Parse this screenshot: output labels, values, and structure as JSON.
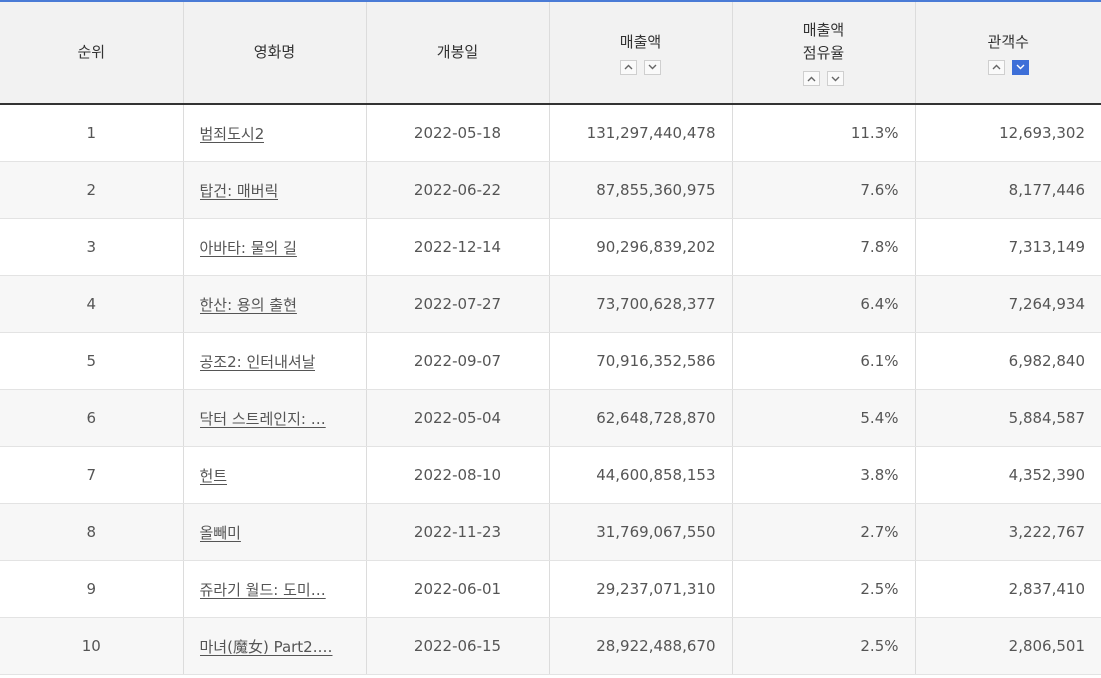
{
  "headers": {
    "rank": "순위",
    "title": "영화명",
    "release": "개봉일",
    "sales": "매출액",
    "share_line1": "매출액",
    "share_line2": "점유율",
    "audience": "관객수"
  },
  "sort": {
    "sales": {
      "up": "chevron-up-icon",
      "down": "chevron-down-icon",
      "active": "none"
    },
    "share": {
      "up": "chevron-up-icon",
      "down": "chevron-down-icon",
      "active": "none"
    },
    "audience": {
      "up": "chevron-up-icon",
      "down": "chevron-down-icon",
      "active": "down"
    }
  },
  "colors": {
    "accent": "#3d6fd8",
    "header_bg": "#f2f2f2",
    "stripe": "#f7f7f7"
  },
  "rows": [
    {
      "rank": "1",
      "title": "범죄도시2",
      "release": "2022-05-18",
      "sales": "131,297,440,478",
      "share": "11.3%",
      "audience": "12,693,302"
    },
    {
      "rank": "2",
      "title": "탑건: 매버릭",
      "release": "2022-06-22",
      "sales": "87,855,360,975",
      "share": "7.6%",
      "audience": "8,177,446"
    },
    {
      "rank": "3",
      "title": "아바타: 물의 길",
      "release": "2022-12-14",
      "sales": "90,296,839,202",
      "share": "7.8%",
      "audience": "7,313,149"
    },
    {
      "rank": "4",
      "title": "한산: 용의 출현",
      "release": "2022-07-27",
      "sales": "73,700,628,377",
      "share": "6.4%",
      "audience": "7,264,934"
    },
    {
      "rank": "5",
      "title": "공조2: 인터내셔날",
      "release": "2022-09-07",
      "sales": "70,916,352,586",
      "share": "6.1%",
      "audience": "6,982,840"
    },
    {
      "rank": "6",
      "title": "닥터 스트레인지: …",
      "release": "2022-05-04",
      "sales": "62,648,728,870",
      "share": "5.4%",
      "audience": "5,884,587"
    },
    {
      "rank": "7",
      "title": "헌트",
      "release": "2022-08-10",
      "sales": "44,600,858,153",
      "share": "3.8%",
      "audience": "4,352,390"
    },
    {
      "rank": "8",
      "title": "올빼미",
      "release": "2022-11-23",
      "sales": "31,769,067,550",
      "share": "2.7%",
      "audience": "3,222,767"
    },
    {
      "rank": "9",
      "title": "쥬라기 월드: 도미…",
      "release": "2022-06-01",
      "sales": "29,237,071,310",
      "share": "2.5%",
      "audience": "2,837,410"
    },
    {
      "rank": "10",
      "title": "마녀(魔女) Part2.…",
      "release": "2022-06-15",
      "sales": "28,922,488,670",
      "share": "2.5%",
      "audience": "2,806,501"
    }
  ]
}
